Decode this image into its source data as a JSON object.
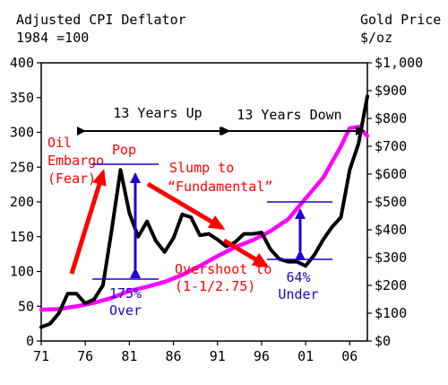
{
  "chart_data": {
    "type": "line",
    "title": "",
    "left_header": [
      "Adjusted CPI Deflator",
      "1984 =100"
    ],
    "right_header": [
      "Gold Price",
      "$/oz"
    ],
    "x_ticks": [
      "71",
      "76",
      "81",
      "86",
      "91",
      "96",
      "01",
      "06"
    ],
    "x_tick_years": [
      1971,
      1976,
      1981,
      1986,
      1991,
      1996,
      2001,
      2006
    ],
    "xlim": [
      1971,
      2008
    ],
    "ylim_left": [
      0,
      400
    ],
    "ylim_right": [
      0,
      1000
    ],
    "y_ticks_left": [
      "0",
      "50",
      "100",
      "150",
      "200",
      "250",
      "300",
      "350",
      "400"
    ],
    "y_ticks_right": [
      "$0",
      "$100",
      "$200",
      "$300",
      "$400",
      "$500",
      "$600",
      "$700",
      "$800",
      "$900",
      "$1,000"
    ],
    "grid": false,
    "colors": {
      "cpi_line": "#ff00ff",
      "gold_line": "#000000",
      "annotation_red": "#ff0000",
      "annotation_blue": "#2200cc"
    },
    "series": [
      {
        "axis": "left",
        "x": [
          1971,
          1973,
          1975,
          1977,
          1979,
          1981,
          1983,
          1985,
          1987,
          1989,
          1991,
          1993,
          1995,
          1997,
          1999,
          2001,
          2003,
          2005,
          2006,
          2007,
          2008
        ],
        "y": [
          45,
          46,
          50,
          55,
          62,
          72,
          78,
          85,
          95,
          108,
          122,
          135,
          145,
          158,
          175,
          205,
          235,
          280,
          306,
          308,
          295
        ]
      },
      {
        "axis": "right",
        "x": [
          1971,
          1972,
          1973,
          1974,
          1975,
          1976,
          1977,
          1978,
          1979,
          1980,
          1981,
          1982,
          1983,
          1984,
          1985,
          1986,
          1987,
          1988,
          1989,
          1990,
          1991,
          1992,
          1993,
          1994,
          1995,
          1996,
          1997,
          1998,
          1999,
          2000,
          2001,
          2002,
          2003,
          2004,
          2005,
          2006,
          2007,
          2008
        ],
        "y": [
          50,
          62,
          100,
          170,
          170,
          135,
          150,
          200,
          400,
          615,
          460,
          375,
          430,
          360,
          320,
          370,
          455,
          445,
          380,
          385,
          365,
          340,
          355,
          385,
          385,
          390,
          330,
          295,
          285,
          285,
          270,
          310,
          365,
          410,
          445,
          615,
          710,
          880
        ]
      }
    ],
    "annotations": {
      "up_span": "13 Years Up",
      "down_span": "13 Years Down",
      "oil_embargo": [
        "Oil",
        "Embargo",
        "(Fear)"
      ],
      "pop": "Pop",
      "slump": [
        "Slump to",
        "“Fundamental”"
      ],
      "overshoot": [
        "Overshoot to",
        "(1-1/2.75)"
      ],
      "over": [
        "175%",
        "Over"
      ],
      "under": [
        "64%",
        "Under"
      ]
    }
  }
}
